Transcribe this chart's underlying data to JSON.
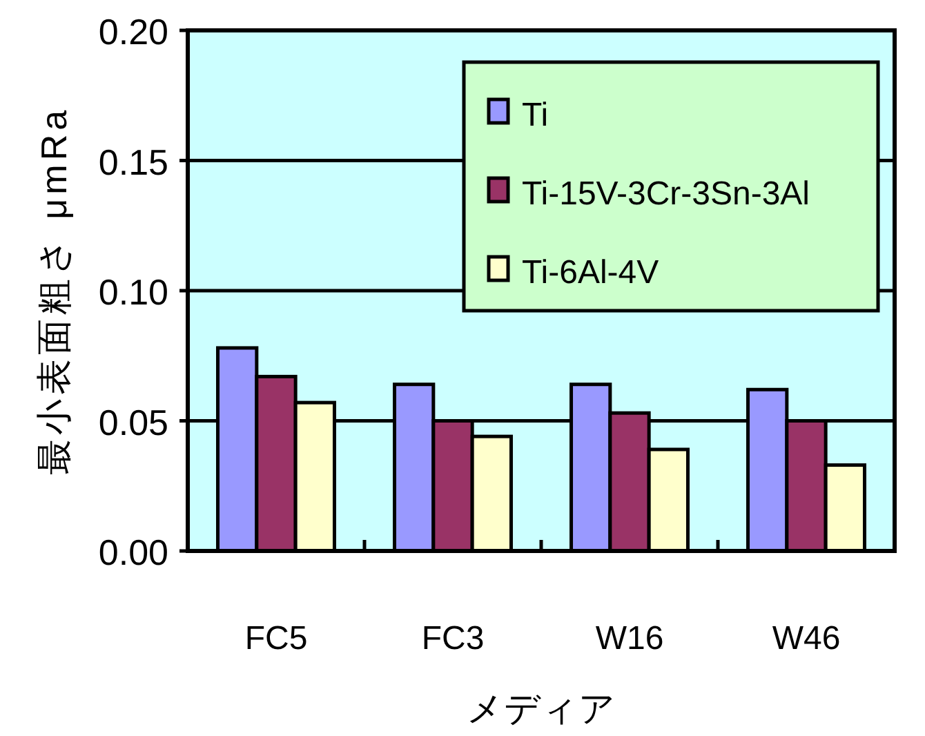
{
  "chart_data": {
    "type": "bar",
    "xlabel": "メディア",
    "ylabel": "最小表面粗さ μmRa",
    "categories": [
      "FC5",
      "FC3",
      "W16",
      "W46"
    ],
    "series": [
      {
        "name": "Ti",
        "color": "#9999ff",
        "values": [
          0.078,
          0.064,
          0.064,
          0.062
        ]
      },
      {
        "name": "Ti-15V-3Cr-3Sn-3Al",
        "color": "#993366",
        "values": [
          0.067,
          0.05,
          0.053,
          0.05
        ]
      },
      {
        "name": "Ti-6Al-4V",
        "color": "#ffffcc",
        "values": [
          0.057,
          0.044,
          0.039,
          0.033
        ]
      }
    ],
    "ylim": [
      0,
      0.2
    ],
    "yticks": [
      {
        "value": 0,
        "label": "0.00"
      },
      {
        "value": 0.05,
        "label": "0.05"
      },
      {
        "value": 0.1,
        "label": "0.10"
      },
      {
        "value": 0.15,
        "label": "0.15"
      },
      {
        "value": 0.2,
        "label": "0.20"
      }
    ],
    "grid": "y",
    "legend": "top right"
  }
}
